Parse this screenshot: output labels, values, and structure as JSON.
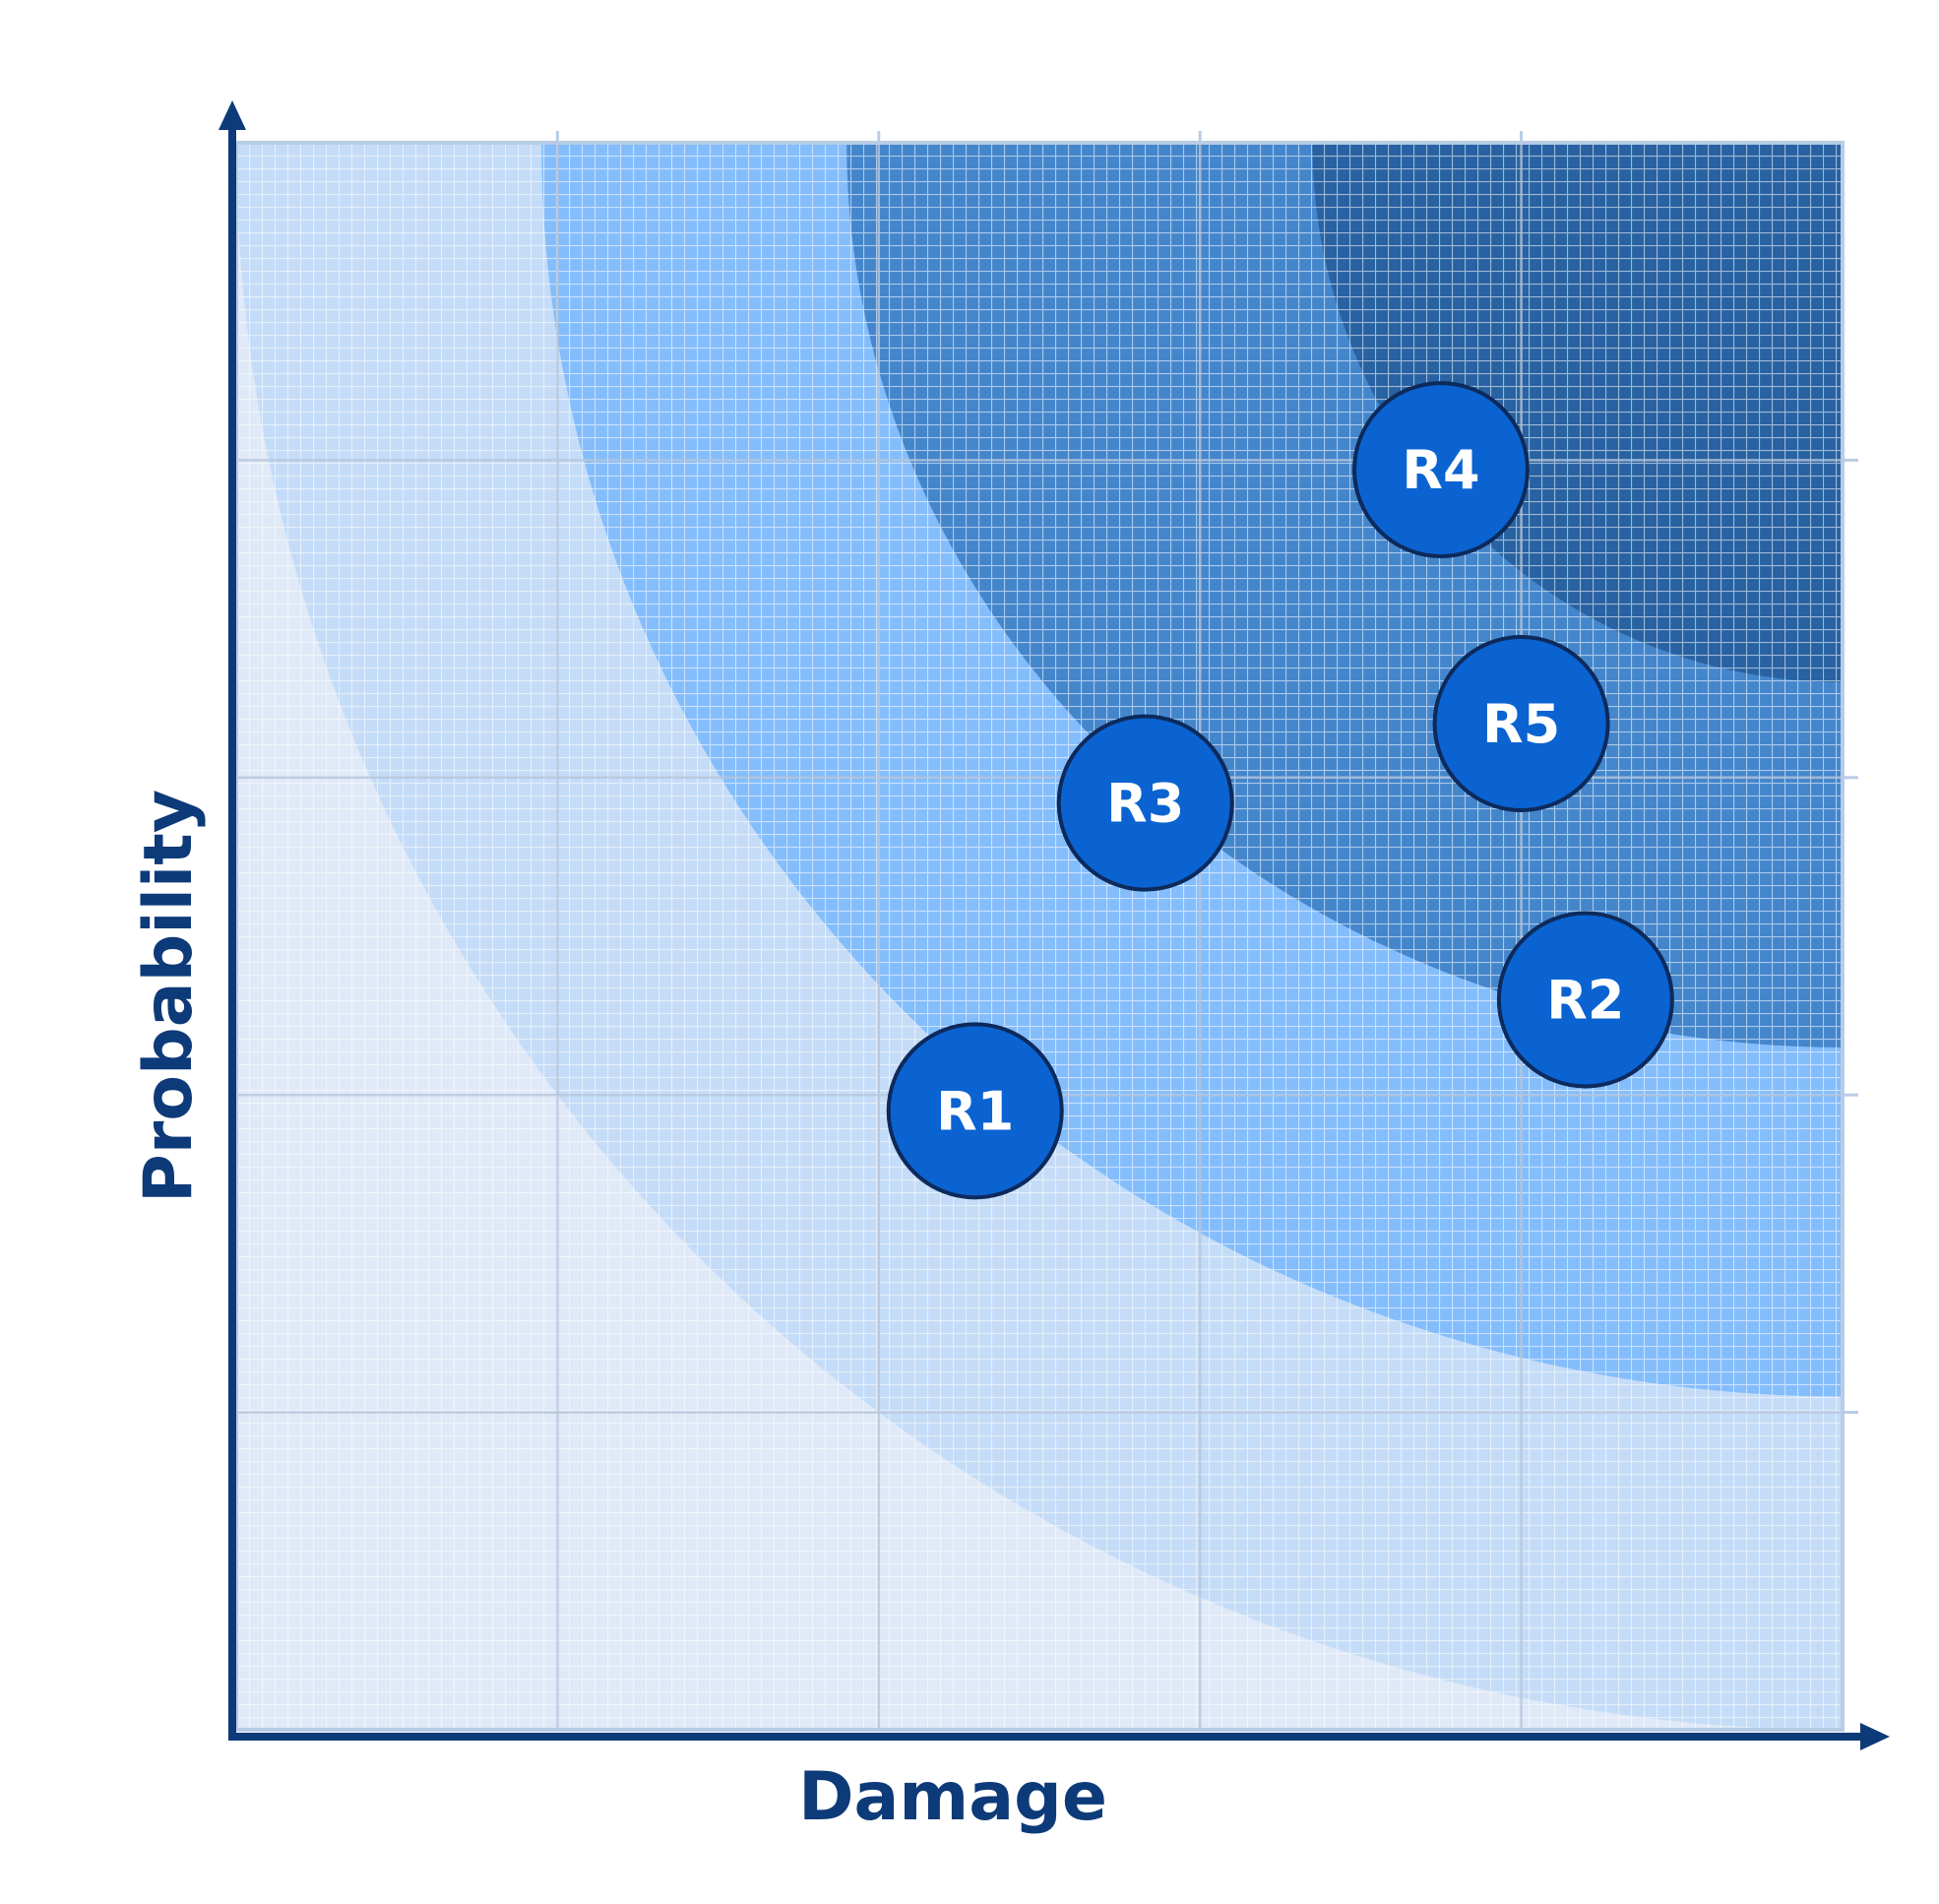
{
  "chart_data": {
    "type": "scatter",
    "title": "",
    "xlabel": "Damage",
    "ylabel": "Probability",
    "xlim": [
      0,
      5
    ],
    "ylim": [
      0,
      5
    ],
    "grid": true,
    "zones": [
      {
        "level": 1,
        "color": "#dfe9f7"
      },
      {
        "level": 2,
        "color": "#c4dcf7"
      },
      {
        "level": 3,
        "color": "#84bdfb"
      },
      {
        "level": 4,
        "color": "#4486cc"
      },
      {
        "level": 5,
        "color": "#2862a2"
      }
    ],
    "points": [
      {
        "label": "R1",
        "x": 2.3,
        "y": 1.95
      },
      {
        "label": "R2",
        "x": 4.2,
        "y": 2.3
      },
      {
        "label": "R3",
        "x": 2.83,
        "y": 2.92
      },
      {
        "label": "R4",
        "x": 3.75,
        "y": 3.97
      },
      {
        "label": "R5",
        "x": 4.0,
        "y": 3.17
      }
    ],
    "colors": {
      "axis": "#0d3a78",
      "marker_fill": "#0a63d1",
      "marker_stroke": "#0d2a5c",
      "grid": "#b6c6dc",
      "frame": "#b9cce6"
    }
  }
}
